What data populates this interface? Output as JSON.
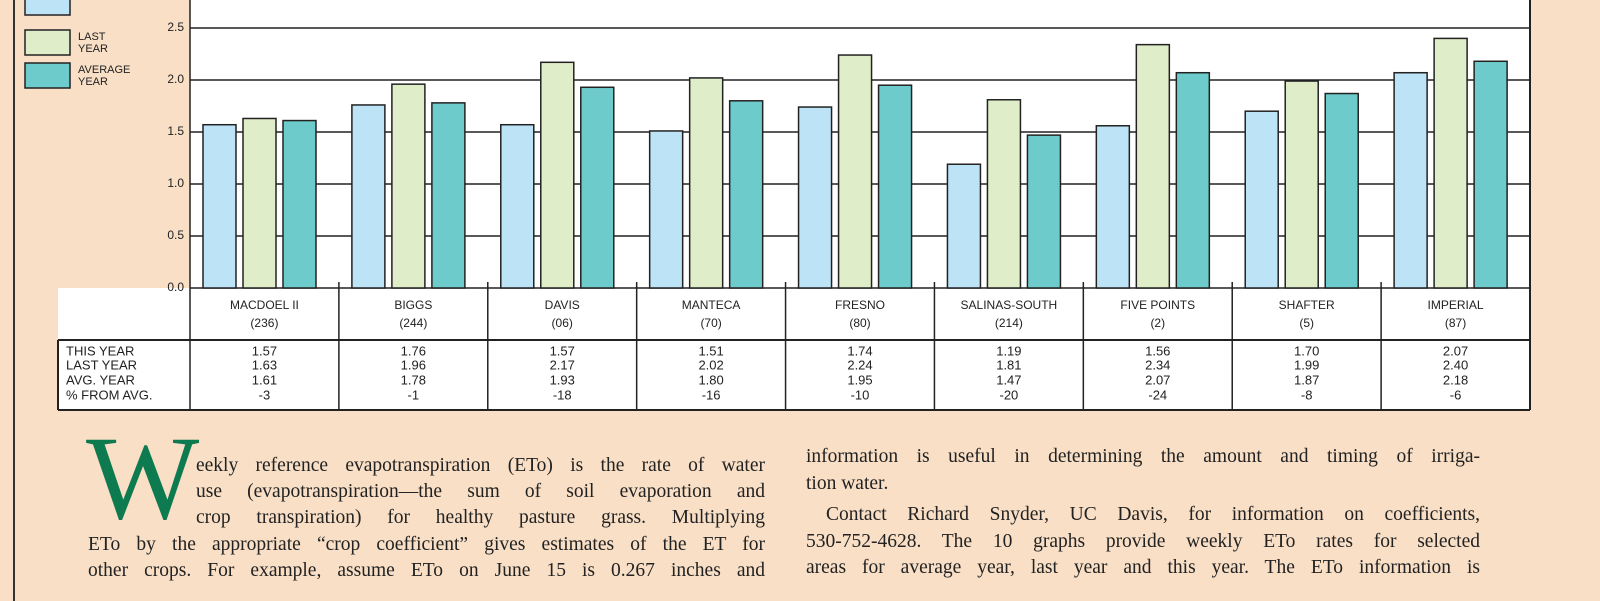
{
  "chart_data": {
    "type": "bar",
    "categories": [
      "MACDOEL II",
      "BIGGS",
      "DAVIS",
      "MANTECA",
      "FRESNO",
      "SALINAS-SOUTH",
      "FIVE POINTS",
      "SHAFTER",
      "IMPERIAL"
    ],
    "category_codes": [
      "(236)",
      "(244)",
      "(06)",
      "(70)",
      "(80)",
      "(214)",
      "(2)",
      "(5)",
      "(87)"
    ],
    "series": [
      {
        "name": "THIS YEAR",
        "color": "#bde3f7",
        "values": [
          1.57,
          1.76,
          1.57,
          1.51,
          1.74,
          1.19,
          1.56,
          1.7,
          2.07
        ],
        "value_labels": [
          "1.57",
          "1.76",
          "1.57",
          "1.51",
          "1.74",
          "1.19",
          "1.56",
          "1.70",
          "2.07"
        ]
      },
      {
        "name": "LAST YEAR",
        "color": "#dfedc8",
        "values": [
          1.63,
          1.96,
          2.17,
          2.02,
          2.24,
          1.81,
          2.34,
          1.99,
          2.4
        ],
        "value_labels": [
          "1.63",
          "1.96",
          "2.17",
          "2.02",
          "2.24",
          "1.81",
          "2.34",
          "1.99",
          "2.40"
        ]
      },
      {
        "name": "AVERAGE YEAR",
        "color": "#6ecbcb",
        "values": [
          1.61,
          1.78,
          1.93,
          1.8,
          1.95,
          1.47,
          2.07,
          1.87,
          2.18
        ],
        "value_labels": [
          "1.61",
          "1.78",
          "1.93",
          "1.80",
          "1.95",
          "1.47",
          "2.07",
          "1.87",
          "2.18"
        ]
      }
    ],
    "ylim": [
      0,
      3
    ],
    "yticks": [
      {
        "value": 0,
        "label": "0.0"
      },
      {
        "value": 0.5,
        "label": "0.5"
      },
      {
        "value": 1,
        "label": "1.0"
      },
      {
        "value": 1.5,
        "label": "1.5"
      },
      {
        "value": 2,
        "label": "2.0"
      },
      {
        "value": 2.5,
        "label": "2.5"
      }
    ],
    "grid": true,
    "table": {
      "row_labels": [
        "THIS YEAR",
        "LAST YEAR",
        "AVG. YEAR",
        "% FROM AVG."
      ],
      "pct_from_avg": [
        -3,
        -1,
        -18,
        -16,
        -10,
        -20,
        -24,
        -8,
        -6
      ]
    }
  },
  "article": {
    "drop_cap": "W",
    "left_column": [
      "eekly reference evapotranspiration (ETo) is the rate of water",
      "use (evapotranspiration—the sum of soil evaporation and",
      "crop transpiration) for healthy pasture grass. Multiplying",
      "ETo by the appropriate “crop coefficient” gives estimates of the ET for",
      "other crops. For example, assume ETo on June 15 is 0.267 inches and"
    ],
    "right_column": [
      "information is useful in determining the amount and timing of irriga-",
      "tion water.",
      "Contact Richard Snyder, UC Davis, for information on coefficients,",
      "530-752-4628. The 10 graphs provide weekly ETo rates for selected",
      "areas for average year, last year and this year. The ETo information is"
    ]
  }
}
